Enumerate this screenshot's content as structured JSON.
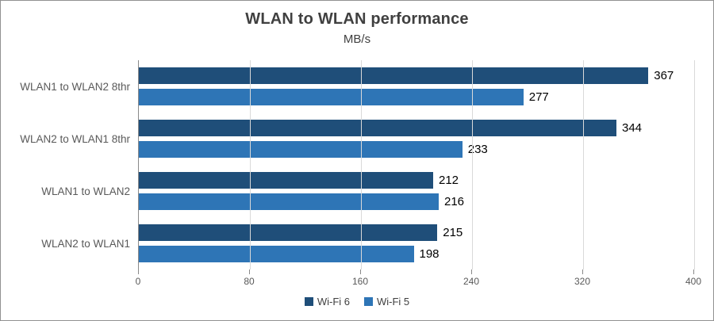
{
  "chart": {
    "border_color": "#919191",
    "background": "#ffffff"
  },
  "chart_data": {
    "type": "bar",
    "orientation": "horizontal",
    "title": "WLAN to WLAN performance",
    "subtitle": "MB/s",
    "categories": [
      "WLAN1 to WLAN2 8thr",
      "WLAN2 to WLAN1 8thr",
      "WLAN1 to WLAN2",
      "WLAN2 to WLAN1"
    ],
    "series": [
      {
        "name": "Wi-Fi 6",
        "color": "#1F4E79",
        "values": [
          367,
          344,
          212,
          215
        ]
      },
      {
        "name": "Wi-Fi 5",
        "color": "#2E75B6",
        "values": [
          277,
          233,
          216,
          198
        ]
      }
    ],
    "xlim": [
      0,
      400
    ],
    "xticks": [
      0,
      80,
      160,
      240,
      320,
      400
    ],
    "grid": true,
    "gridline_color": "#d9d9d9",
    "axis_color": "#898989",
    "value_labels": true,
    "value_label_color": "#000000",
    "tick_label_color": "#595959",
    "legend_position": "bottom"
  }
}
